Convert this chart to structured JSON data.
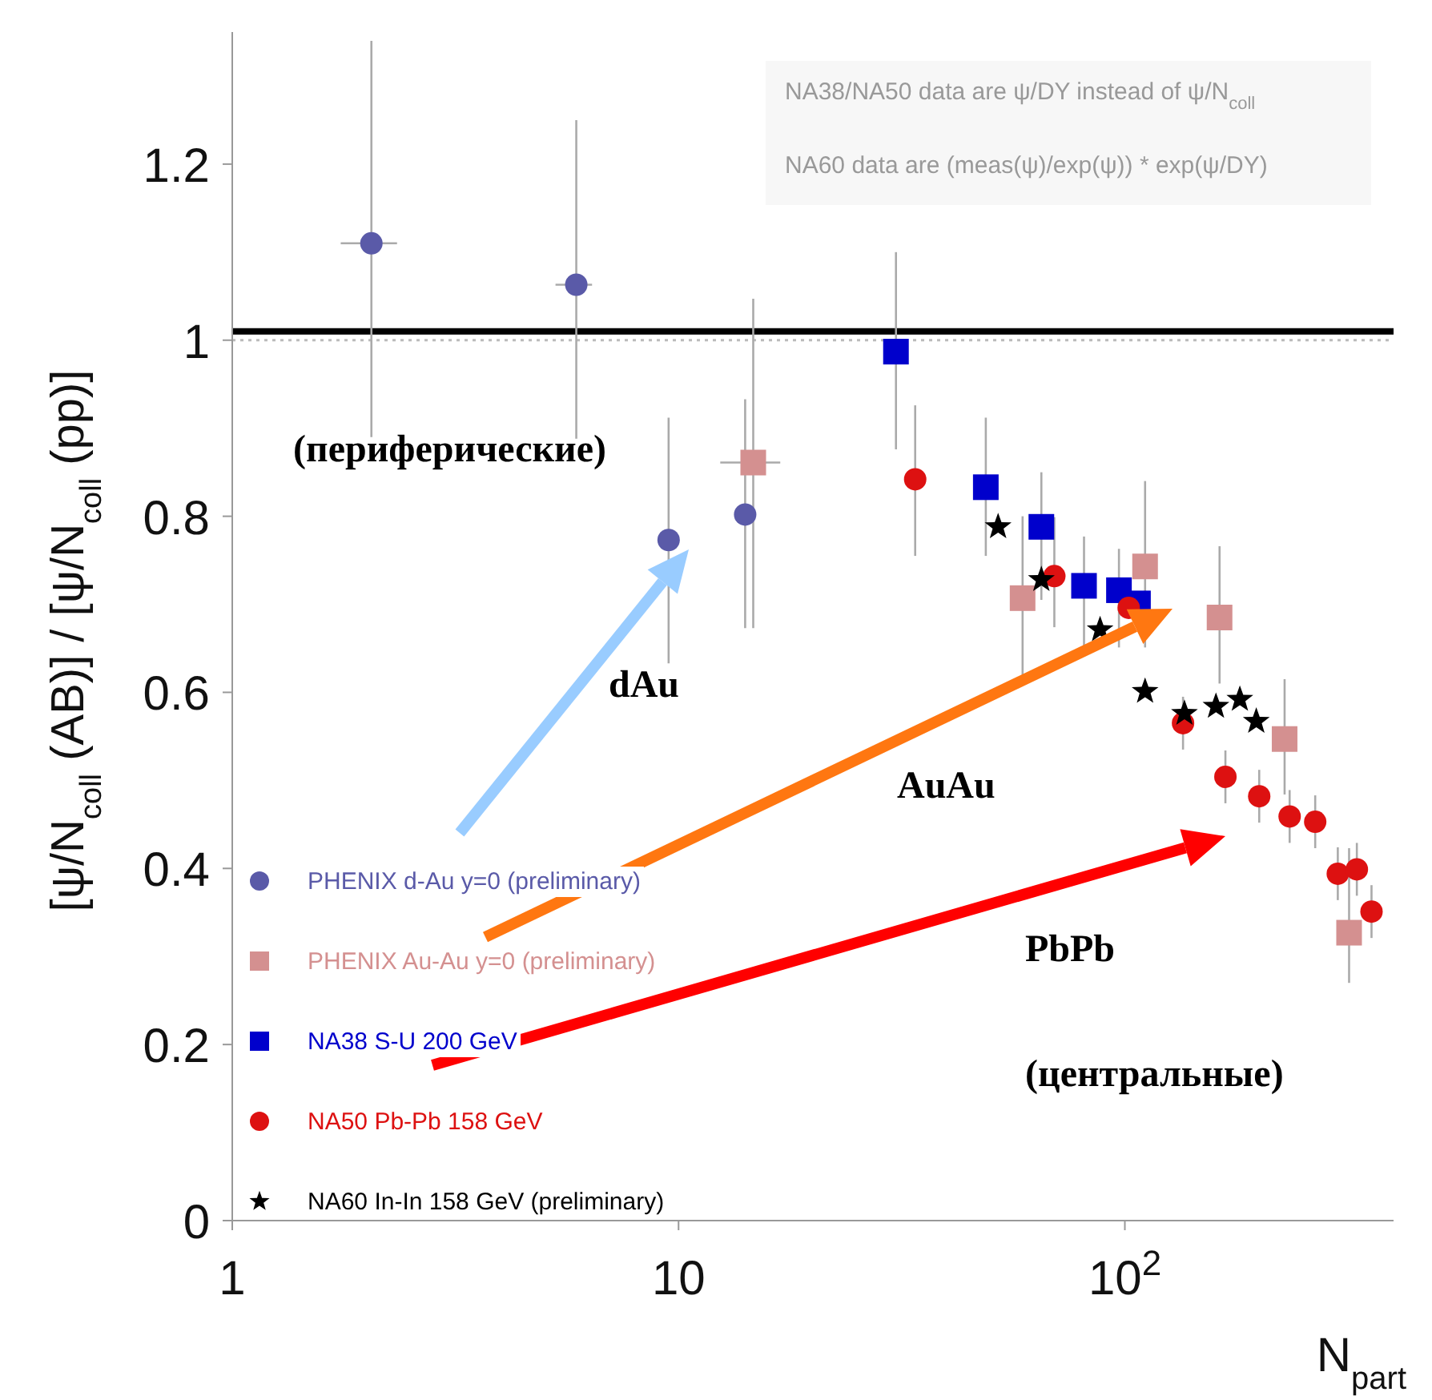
{
  "chart_data": {
    "type": "scatter",
    "xlabel": "N$_{part}$",
    "ylabel": "[ψ/N$_{coll}$ (AB)] / [ψ/N$_{coll}$ (pp)]",
    "log": "x",
    "xlim": [
      1,
      400
    ],
    "xticks": [
      1,
      10,
      {
        "value": 100,
        "label": "10$^{2}$"
      }
    ],
    "ylim": [
      0,
      1.35
    ],
    "yticks": [
      0,
      0.2,
      0.4,
      0.6,
      0.8,
      1,
      1.2
    ],
    "legend": "bottom left",
    "ref_lines": [
      {
        "axis": "y",
        "value": 1.01,
        "color": "#000000"
      },
      {
        "axis": "y",
        "value": 1,
        "color": "#bbbbbb",
        "line_style": "dotted"
      }
    ],
    "annotations": [
      "NA38/NA50 data are ψ/DY instead of ψ/N$_{coll}$",
      "NA60 data are (meas(ψ)/exp(ψ)) * exp(ψ/DY)",
      "(периферические)",
      "dAu",
      "AuAu",
      "PbPb",
      "(центральные)"
    ],
    "series": [
      {
        "name": "PHENIX d-Au y=0 (preliminary)",
        "color": "#5a5aa8",
        "marker": "circle",
        "x": [
          2.05,
          5.9,
          9.5,
          14.1
        ],
        "values": [
          1.11,
          1.063,
          0.773,
          0.802
        ],
        "errors": [
          [
            0.89,
            1.34
          ],
          [
            0.888,
            1.25
          ],
          [
            0.633,
            0.912
          ],
          [
            0.673,
            0.933
          ]
        ],
        "xerrors": [
          [
            1.75,
            2.34
          ],
          [
            5.3,
            6.4
          ],
          null,
          null
        ]
      },
      {
        "name": "PHENIX Au-Au y=0 (preliminary)",
        "color": "#d49090",
        "marker": "square",
        "x": [
          14.7,
          59,
          111,
          163,
          228,
          318
        ],
        "values": [
          0.861,
          0.707,
          0.743,
          0.685,
          0.547,
          0.327
        ],
        "errors": [
          [
            0.673,
            1.047
          ],
          [
            0.62,
            0.8
          ],
          [
            0.651,
            0.84
          ],
          [
            0.61,
            0.766
          ],
          [
            0.484,
            0.615
          ],
          [
            0.27,
            0.423
          ]
        ],
        "xerrors": [
          [
            12.4,
            16.9
          ],
          null,
          null,
          null,
          null,
          null
        ]
      },
      {
        "name": "NA38 S-U 200 GeV",
        "color": "#0000cc",
        "marker": "square",
        "x": [
          30.7,
          48.8,
          65,
          81,
          97,
          107
        ],
        "values": [
          0.987,
          0.833,
          0.788,
          0.721,
          0.716,
          0.701
        ],
        "errors": [
          [
            0.876,
            1.1
          ],
          [
            0.755,
            0.912
          ],
          [
            0.705,
            0.85
          ],
          [
            0.651,
            0.777
          ],
          [
            0.651,
            0.763
          ],
          null
        ]
      },
      {
        "name": "NA50 Pb-Pb 158 GeV",
        "color": "#dd1111",
        "marker": "circle",
        "x": [
          33.9,
          69.5,
          102,
          135,
          168,
          200,
          234,
          267,
          300,
          331,
          357
        ],
        "values": [
          0.842,
          0.732,
          0.696,
          0.565,
          0.504,
          0.482,
          0.459,
          0.453,
          0.394,
          0.399,
          0.351
        ],
        "errors": [
          [
            0.755,
            0.926
          ],
          [
            0.674,
            0.799
          ],
          null,
          0.03,
          0.03,
          0.03,
          0.03,
          0.03,
          0.03,
          0.03,
          0.03
        ]
      },
      {
        "name": "NA60 In-In 158 GeV (preliminary)",
        "color": "#000000",
        "marker": "star",
        "x": [
          52,
          65,
          88,
          111,
          136,
          160,
          181,
          197
        ],
        "values": [
          0.788,
          0.728,
          0.671,
          0.601,
          0.576,
          0.584,
          0.592,
          0.567
        ]
      }
    ]
  }
}
